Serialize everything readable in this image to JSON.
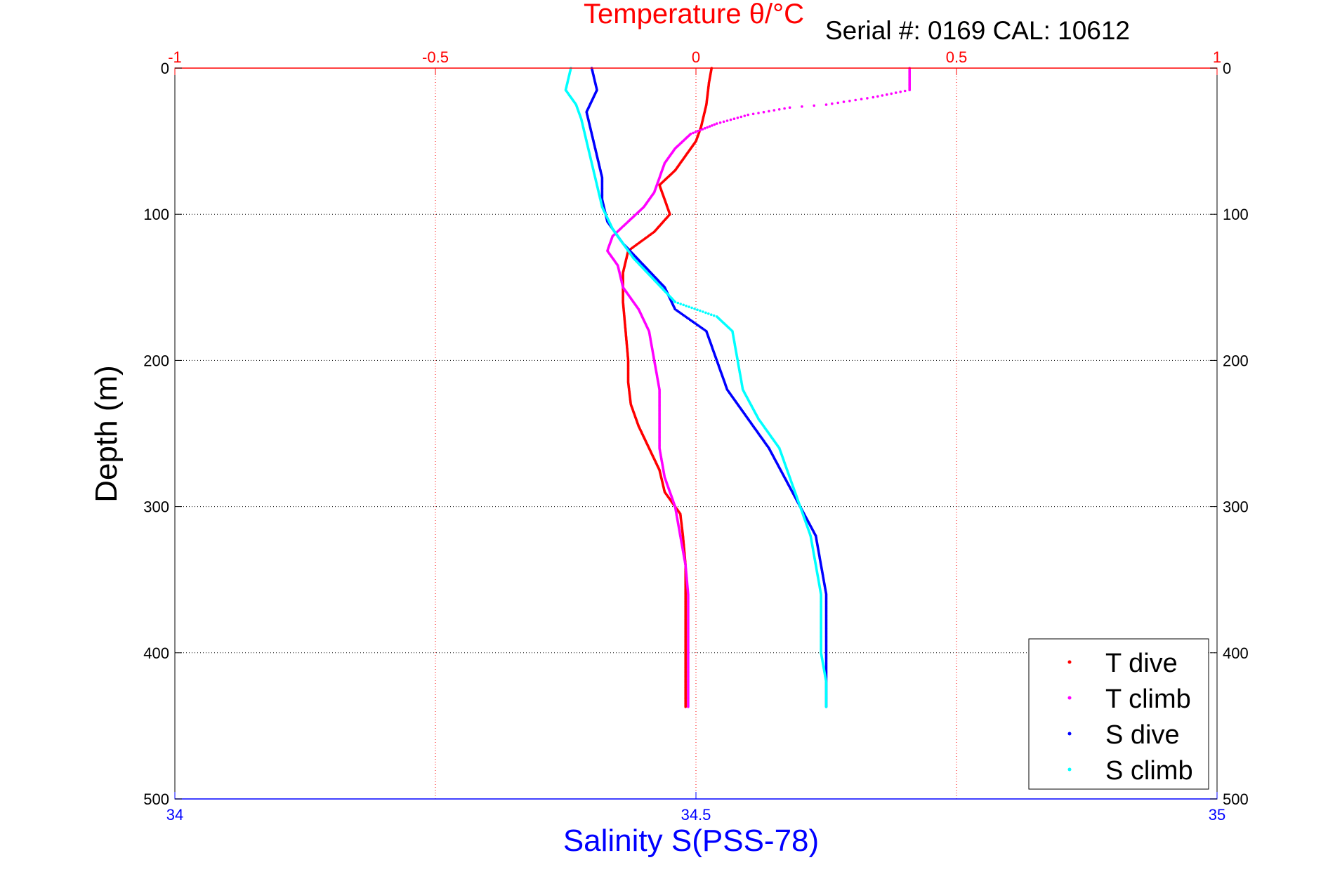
{
  "chart_data": {
    "type": "scatter",
    "title": "Temperature θ/°C",
    "subtitle": "Serial #: 0169 CAL: 10612",
    "xlabel": "Salinity S(PSS-78)",
    "ylabel": "Depth (m)",
    "top_axis": {
      "range": [
        -1,
        1
      ],
      "ticks": [
        -1,
        -0.5,
        0,
        0.5,
        1
      ],
      "tick_labels": [
        "-1",
        "-0.5",
        "0",
        "0.5",
        "1"
      ],
      "color": "#ff0000"
    },
    "bottom_axis": {
      "range": [
        34,
        35
      ],
      "ticks": [
        34,
        34.5,
        35
      ],
      "tick_labels": [
        "34",
        "34.5",
        "35"
      ],
      "color": "#0000ff"
    },
    "y_axis": {
      "range": [
        0,
        500
      ],
      "reversed": true,
      "ticks": [
        0,
        100,
        200,
        300,
        400,
        500
      ],
      "tick_labels": [
        "0",
        "100",
        "200",
        "300",
        "400",
        "500"
      ]
    },
    "grid": true,
    "legend_position": "bottom-right",
    "series": [
      {
        "name": "T dive",
        "axis": "top",
        "color": "#ff0000",
        "points": [
          [
            0.03,
            0
          ],
          [
            0.025,
            10
          ],
          [
            0.02,
            25
          ],
          [
            0.01,
            40
          ],
          [
            0.0,
            50
          ],
          [
            -0.02,
            60
          ],
          [
            -0.04,
            70
          ],
          [
            -0.07,
            80
          ],
          [
            -0.06,
            90
          ],
          [
            -0.05,
            100
          ],
          [
            -0.08,
            112
          ],
          [
            -0.13,
            125
          ],
          [
            -0.14,
            140
          ],
          [
            -0.14,
            160
          ],
          [
            -0.135,
            180
          ],
          [
            -0.13,
            200
          ],
          [
            -0.13,
            215
          ],
          [
            -0.125,
            230
          ],
          [
            -0.11,
            245
          ],
          [
            -0.09,
            260
          ],
          [
            -0.07,
            275
          ],
          [
            -0.06,
            290
          ],
          [
            -0.03,
            305
          ],
          [
            -0.025,
            320
          ],
          [
            -0.02,
            340
          ],
          [
            -0.02,
            360
          ],
          [
            -0.02,
            380
          ],
          [
            -0.02,
            400
          ],
          [
            -0.02,
            420
          ],
          [
            -0.02,
            437
          ]
        ]
      },
      {
        "name": "T climb",
        "axis": "top",
        "color": "#ff00ff",
        "points": [
          [
            0.41,
            0
          ],
          [
            0.41,
            15
          ],
          [
            0.34,
            20
          ],
          [
            0.25,
            25
          ],
          [
            0.18,
            27
          ],
          [
            0.1,
            32
          ],
          [
            0.04,
            38
          ],
          [
            -0.01,
            45
          ],
          [
            -0.04,
            55
          ],
          [
            -0.06,
            65
          ],
          [
            -0.07,
            75
          ],
          [
            -0.08,
            85
          ],
          [
            -0.1,
            95
          ],
          [
            -0.13,
            105
          ],
          [
            -0.16,
            115
          ],
          [
            -0.17,
            125
          ],
          [
            -0.15,
            135
          ],
          [
            -0.14,
            150
          ],
          [
            -0.11,
            165
          ],
          [
            -0.09,
            180
          ],
          [
            -0.08,
            200
          ],
          [
            -0.07,
            220
          ],
          [
            -0.07,
            240
          ],
          [
            -0.07,
            260
          ],
          [
            -0.06,
            280
          ],
          [
            -0.04,
            300
          ],
          [
            -0.03,
            320
          ],
          [
            -0.02,
            340
          ],
          [
            -0.015,
            360
          ],
          [
            -0.015,
            380
          ],
          [
            -0.015,
            400
          ],
          [
            -0.015,
            420
          ],
          [
            -0.015,
            437
          ]
        ]
      },
      {
        "name": "S dive",
        "axis": "bottom",
        "color": "#0000ff",
        "points": [
          [
            34.4,
            0
          ],
          [
            34.405,
            15
          ],
          [
            34.395,
            30
          ],
          [
            34.4,
            45
          ],
          [
            34.405,
            60
          ],
          [
            34.41,
            75
          ],
          [
            34.41,
            90
          ],
          [
            34.415,
            105
          ],
          [
            34.43,
            120
          ],
          [
            34.45,
            135
          ],
          [
            34.47,
            150
          ],
          [
            34.48,
            165
          ],
          [
            34.51,
            180
          ],
          [
            34.52,
            200
          ],
          [
            34.53,
            220
          ],
          [
            34.55,
            240
          ],
          [
            34.57,
            260
          ],
          [
            34.585,
            280
          ],
          [
            34.6,
            300
          ],
          [
            34.615,
            320
          ],
          [
            34.62,
            340
          ],
          [
            34.625,
            360
          ],
          [
            34.625,
            380
          ],
          [
            34.625,
            400
          ],
          [
            34.625,
            420
          ],
          [
            34.625,
            437
          ]
        ]
      },
      {
        "name": "S climb",
        "axis": "bottom",
        "color": "#00ffff",
        "points": [
          [
            34.38,
            0
          ],
          [
            34.375,
            15
          ],
          [
            34.385,
            25
          ],
          [
            34.39,
            35
          ],
          [
            34.395,
            50
          ],
          [
            34.4,
            65
          ],
          [
            34.405,
            80
          ],
          [
            34.41,
            95
          ],
          [
            34.42,
            110
          ],
          [
            34.43,
            120
          ],
          [
            34.44,
            130
          ],
          [
            34.46,
            145
          ],
          [
            34.48,
            160
          ],
          [
            34.52,
            170
          ],
          [
            34.535,
            180
          ],
          [
            34.54,
            200
          ],
          [
            34.545,
            220
          ],
          [
            34.56,
            240
          ],
          [
            34.58,
            260
          ],
          [
            34.59,
            280
          ],
          [
            34.6,
            300
          ],
          [
            34.61,
            320
          ],
          [
            34.615,
            340
          ],
          [
            34.62,
            360
          ],
          [
            34.62,
            380
          ],
          [
            34.62,
            400
          ],
          [
            34.625,
            420
          ],
          [
            34.625,
            437
          ]
        ]
      }
    ]
  }
}
